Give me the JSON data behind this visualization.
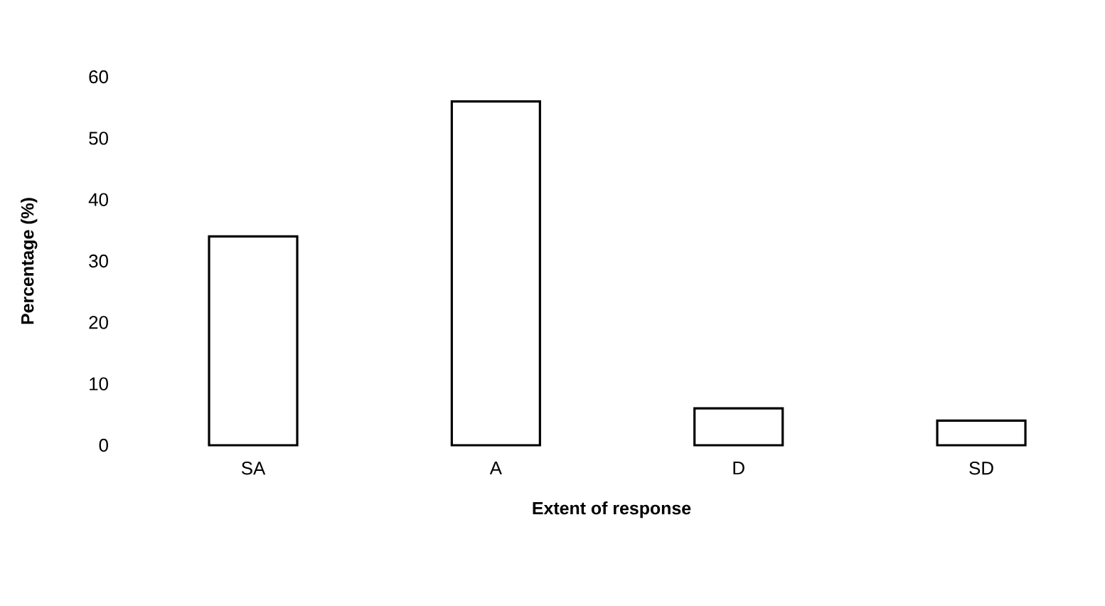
{
  "chart_data": {
    "type": "bar",
    "xlabel": "Extent of response",
    "ylabel": "Percentage (%)",
    "categories": [
      "SA",
      "A",
      "D",
      "SD"
    ],
    "values": [
      34,
      56,
      6,
      4
    ],
    "color": "#ffffff",
    "ylim": [
      0,
      60
    ],
    "yticks": [
      0,
      10,
      20,
      30,
      40,
      50,
      60
    ]
  }
}
